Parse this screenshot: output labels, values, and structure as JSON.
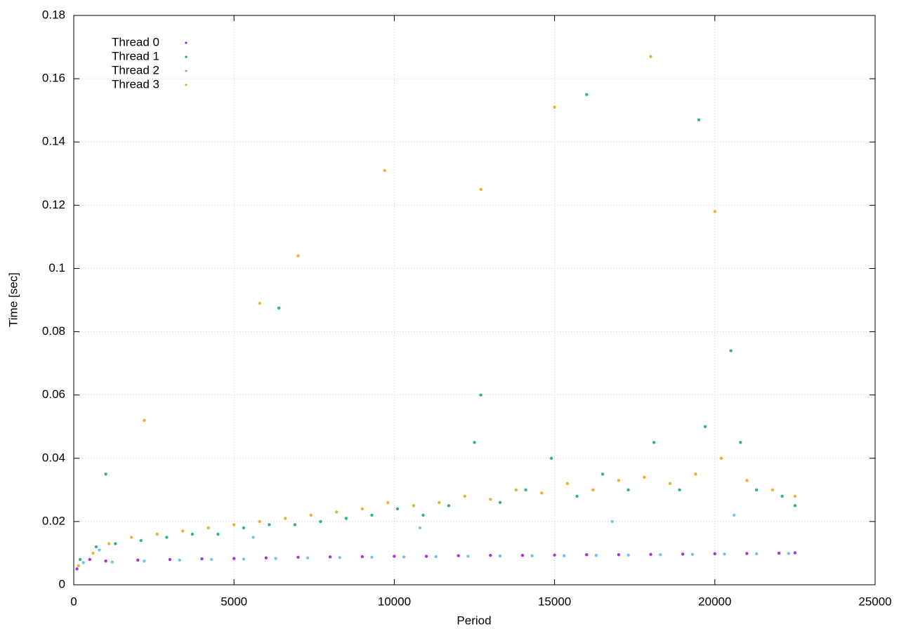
{
  "chart_data": {
    "type": "scatter",
    "x_label": "Period",
    "y_label": "Time [sec]",
    "xlim": [
      0,
      25000
    ],
    "xticks": [
      0,
      5000,
      10000,
      15000,
      20000,
      25000
    ],
    "ylim": [
      0,
      0.18
    ],
    "yticks": [
      0,
      0.02,
      0.04,
      0.06,
      0.08,
      0.1,
      0.12,
      0.14,
      0.16,
      0.18
    ],
    "grid": true,
    "legend": "top-left",
    "series": [
      {
        "name": "Thread 0",
        "color": "#9400d3",
        "x": [
          100,
          500,
          1000,
          2000,
          3000,
          4000,
          5000,
          6000,
          7000,
          8000,
          9000,
          10000,
          11000,
          12000,
          13000,
          14000,
          15000,
          16000,
          17000,
          18000,
          19000,
          20000,
          21000,
          22000,
          22500
        ],
        "values": [
          0.005,
          0.008,
          0.0075,
          0.0078,
          0.008,
          0.0082,
          0.0083,
          0.0085,
          0.0087,
          0.0088,
          0.0089,
          0.009,
          0.009,
          0.0092,
          0.0093,
          0.0093,
          0.0094,
          0.0095,
          0.0095,
          0.0096,
          0.0097,
          0.0098,
          0.0099,
          0.01,
          0.0101
        ]
      },
      {
        "name": "Thread 1",
        "color": "#009e73",
        "x": [
          200,
          700,
          1300,
          2100,
          2900,
          3700,
          4500,
          5300,
          6100,
          6900,
          7700,
          8500,
          9300,
          10100,
          10900,
          11700,
          12500,
          12700,
          13300,
          14100,
          14900,
          15700,
          16500,
          17300,
          18100,
          18900,
          19700,
          20500,
          20800,
          21300,
          22100,
          22500,
          1000,
          6400,
          16000,
          19500
        ],
        "values": [
          0.008,
          0.012,
          0.013,
          0.014,
          0.015,
          0.016,
          0.016,
          0.018,
          0.019,
          0.019,
          0.02,
          0.021,
          0.022,
          0.024,
          0.022,
          0.025,
          0.045,
          0.06,
          0.026,
          0.03,
          0.04,
          0.028,
          0.035,
          0.03,
          0.045,
          0.03,
          0.05,
          0.074,
          0.045,
          0.03,
          0.028,
          0.025,
          0.035,
          0.0875,
          0.155,
          0.147
        ]
      },
      {
        "name": "Thread 2",
        "color": "#56b4e9",
        "x": [
          300,
          800,
          1200,
          2200,
          3300,
          4300,
          5300,
          6300,
          7300,
          8300,
          9300,
          10300,
          11300,
          12300,
          13300,
          14300,
          15300,
          16300,
          17300,
          18300,
          19300,
          20300,
          21300,
          22300,
          5600,
          10800,
          16800,
          20600
        ],
        "values": [
          0.007,
          0.011,
          0.0072,
          0.0075,
          0.0078,
          0.008,
          0.0081,
          0.0083,
          0.0085,
          0.0086,
          0.0087,
          0.0088,
          0.0089,
          0.009,
          0.0091,
          0.0092,
          0.0092,
          0.0093,
          0.0094,
          0.0095,
          0.0096,
          0.0097,
          0.0098,
          0.0099,
          0.015,
          0.018,
          0.02,
          0.022
        ]
      },
      {
        "name": "Thread 3",
        "color": "#e69f00",
        "x": [
          150,
          600,
          1100,
          1800,
          2600,
          3400,
          4200,
          5000,
          5800,
          6600,
          7400,
          8200,
          9000,
          9800,
          10600,
          11400,
          12200,
          13000,
          13800,
          14600,
          15400,
          16200,
          17000,
          17800,
          18600,
          19400,
          20200,
          21000,
          21800,
          22500,
          2200,
          5800,
          7000,
          9700,
          12700,
          18000,
          20000,
          15000
        ],
        "values": [
          0.006,
          0.01,
          0.013,
          0.015,
          0.016,
          0.017,
          0.018,
          0.019,
          0.02,
          0.021,
          0.022,
          0.023,
          0.024,
          0.026,
          0.025,
          0.026,
          0.028,
          0.027,
          0.03,
          0.029,
          0.032,
          0.03,
          0.033,
          0.034,
          0.032,
          0.035,
          0.04,
          0.033,
          0.03,
          0.028,
          0.052,
          0.089,
          0.104,
          0.131,
          0.125,
          0.167,
          0.118,
          0.151
        ]
      }
    ]
  }
}
